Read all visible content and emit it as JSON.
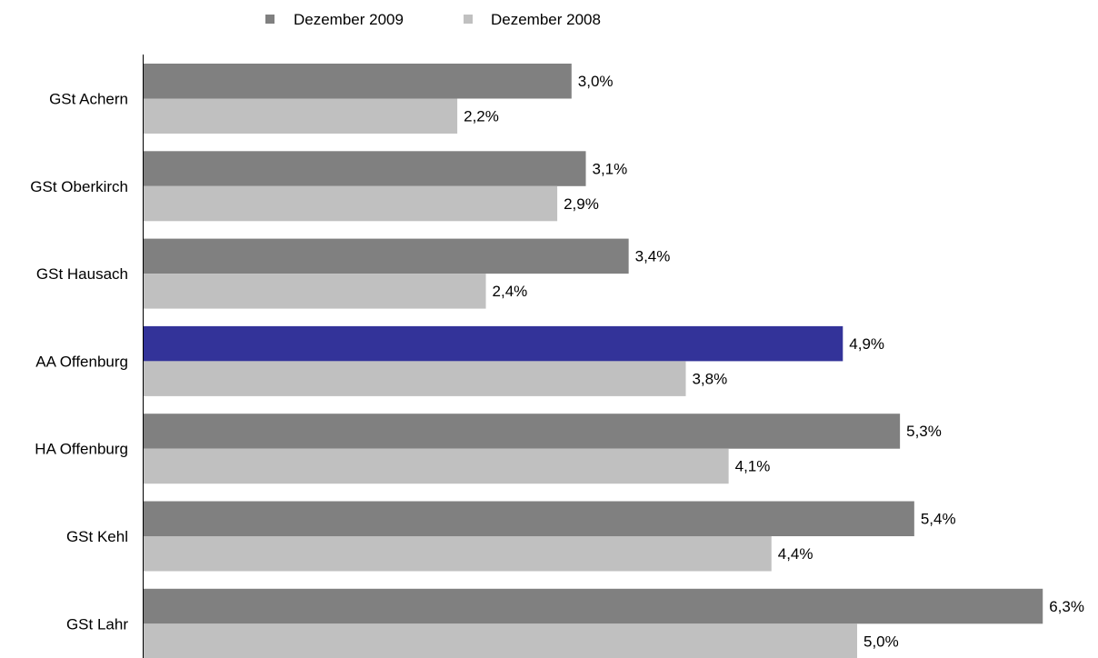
{
  "chart_data": {
    "type": "bar",
    "orientation": "horizontal",
    "title": "",
    "xlabel": "",
    "ylabel": "",
    "categories": [
      "GSt Achern",
      "GSt Oberkirch",
      "GSt Hausach",
      "AA Offenburg",
      "HA Offenburg",
      "GSt Kehl",
      "GSt Lahr"
    ],
    "series": [
      {
        "name": "Dezember 2009",
        "color": "#808080",
        "values": [
          3.0,
          3.1,
          3.4,
          4.9,
          5.3,
          5.4,
          6.3
        ],
        "labels": [
          "3,0%",
          "3,1%",
          "3,4%",
          "4,9%",
          "5,3%",
          "5,4%",
          "6,3%"
        ],
        "highlight": {
          "category": "AA Offenburg",
          "color": "#333399"
        }
      },
      {
        "name": "Dezember 2008",
        "color": "#c0c0c0",
        "values": [
          2.2,
          2.9,
          2.4,
          3.8,
          4.1,
          4.4,
          5.0
        ],
        "labels": [
          "2,2%",
          "2,9%",
          "2,4%",
          "3,8%",
          "4,1%",
          "4,4%",
          "5,0%"
        ]
      }
    ],
    "xlim": [
      0,
      6.3
    ],
    "grid": false,
    "legend_position": "top"
  }
}
